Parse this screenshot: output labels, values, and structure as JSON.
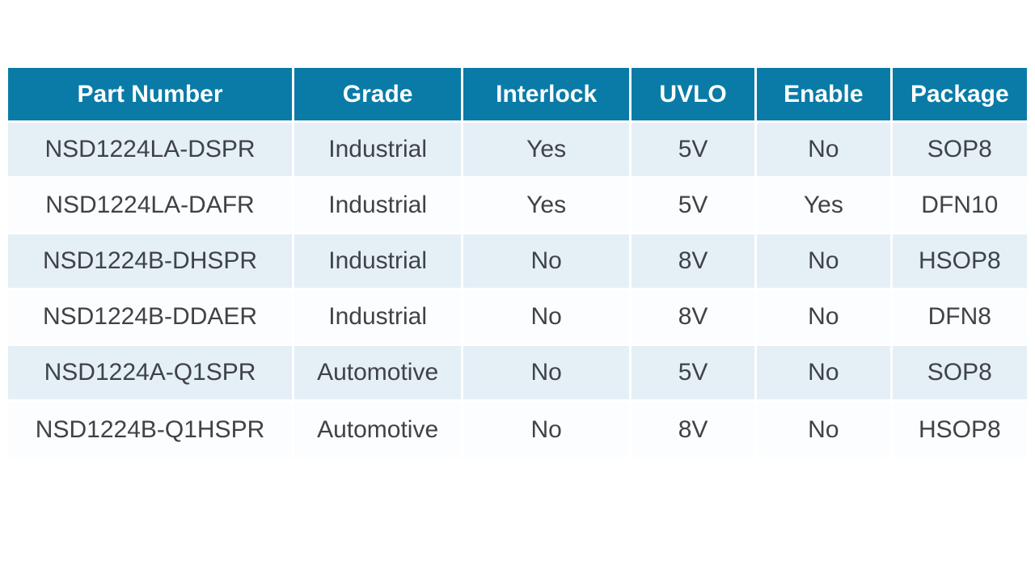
{
  "colors": {
    "header_bg": "#0a7ba7",
    "header_text": "#ffffff",
    "body_text": "#3f4347",
    "row_alt_bg": "#e5eff6",
    "row_bg": "#fbfdfe"
  },
  "table": {
    "columns": [
      {
        "key": "part_number",
        "label": "Part Number"
      },
      {
        "key": "grade",
        "label": "Grade"
      },
      {
        "key": "interlock",
        "label": "Interlock"
      },
      {
        "key": "uvlo",
        "label": "UVLO"
      },
      {
        "key": "enable",
        "label": "Enable"
      },
      {
        "key": "package",
        "label": "Package"
      }
    ],
    "rows": [
      {
        "part_number": "NSD1224LA-DSPR",
        "grade": "Industrial",
        "interlock": "Yes",
        "uvlo": "5V",
        "enable": "No",
        "package": "SOP8"
      },
      {
        "part_number": "NSD1224LA-DAFR",
        "grade": "Industrial",
        "interlock": "Yes",
        "uvlo": "5V",
        "enable": "Yes",
        "package": "DFN10"
      },
      {
        "part_number": "NSD1224B-DHSPR",
        "grade": "Industrial",
        "interlock": "No",
        "uvlo": "8V",
        "enable": "No",
        "package": "HSOP8"
      },
      {
        "part_number": "NSD1224B-DDAER",
        "grade": "Industrial",
        "interlock": "No",
        "uvlo": "8V",
        "enable": "No",
        "package": "DFN8"
      },
      {
        "part_number": "NSD1224A-Q1SPR",
        "grade": "Automotive",
        "interlock": "No",
        "uvlo": "5V",
        "enable": "No",
        "package": "SOP8"
      },
      {
        "part_number": "NSD1224B-Q1HSPR",
        "grade": "Automotive",
        "interlock": "No",
        "uvlo": "8V",
        "enable": "No",
        "package": "HSOP8"
      }
    ]
  }
}
